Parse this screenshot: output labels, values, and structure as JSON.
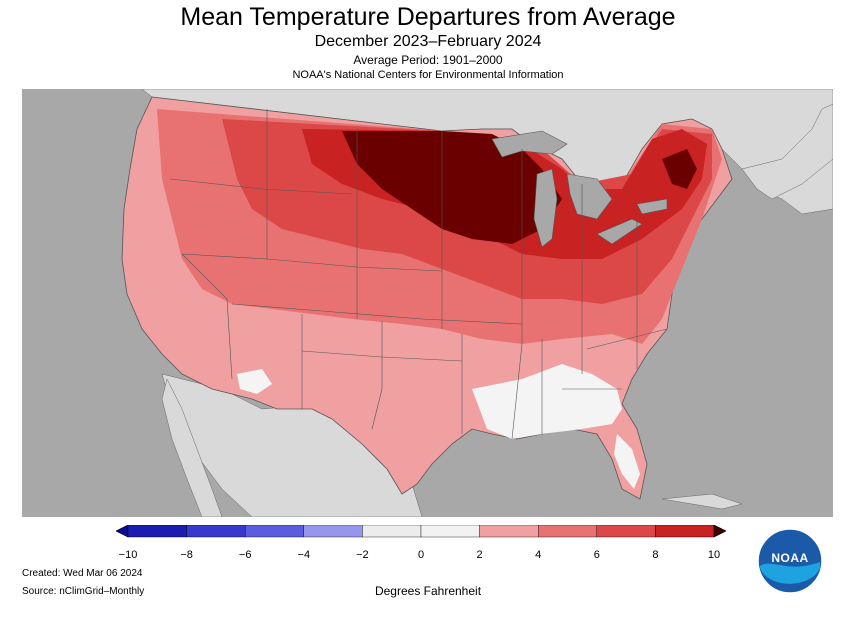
{
  "header": {
    "title": "Mean Temperature Departures from Average",
    "subtitle": "December 2023–February 2024",
    "average_period": "Average Period: 1901–2000",
    "organization": "NOAA's National Centers for Environmental Information"
  },
  "legend": {
    "tick_labels": [
      "−10",
      "−8",
      "−6",
      "−4",
      "−2",
      "0",
      "2",
      "4",
      "6",
      "8",
      "10"
    ],
    "colors": [
      "#1c1cb0",
      "#3838cc",
      "#5c5cde",
      "#9696ec",
      "#ececec",
      "#f2f2f2",
      "#f0a0a0",
      "#e87272",
      "#dc4848",
      "#c82222",
      "#6b0000"
    ],
    "units": "Degrees Fahrenheit"
  },
  "footer": {
    "created": "Created: Wed Mar 06 2024",
    "source": "Source: nClimGrid–Monthly"
  },
  "logo": {
    "text": "NOAA"
  },
  "palette": {
    "ocean": "#a8a8a8",
    "land_outside": "#d9d9d9",
    "lakes": "#a8a8a8",
    "band_0_2": "#f4f4f4",
    "band_2_4": "#f0a0a0",
    "band_4_6": "#e87272",
    "band_6_8": "#dc4848",
    "band_8_10": "#c82222",
    "band_10_plus": "#6b0000"
  }
}
